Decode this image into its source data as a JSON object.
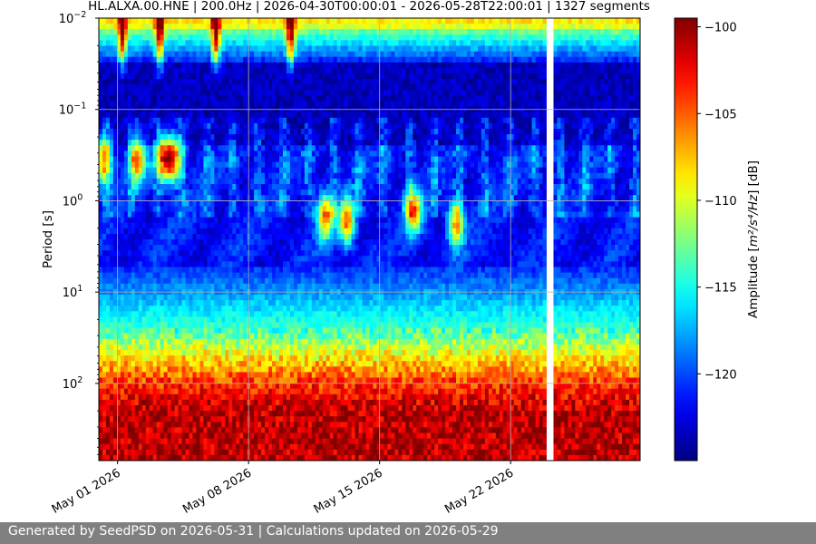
{
  "chart_data": {
    "type": "heatmap",
    "title": "HL.ALXA.00.HNE | 200.0Hz | 2026-04-30T00:00:01 - 2026-05-28T22:00:01 | 1327 segments",
    "ylabel": "Period [s]",
    "xlabel": "",
    "x_axis": {
      "range": [
        "2026-04-30T00:00:01",
        "2026-05-28T22:00:01"
      ],
      "ticks": [
        {
          "date": "2026-05-01",
          "label": "May 01 2026"
        },
        {
          "date": "2026-05-08",
          "label": "May 08 2026"
        },
        {
          "date": "2026-05-15",
          "label": "May 15 2026"
        },
        {
          "date": "2026-05-22",
          "label": "May 22 2026"
        }
      ]
    },
    "y_axis": {
      "scale": "log",
      "inverted": true,
      "range": [
        0.01,
        700
      ],
      "ticks": [
        {
          "value": 0.01,
          "base": "10",
          "exp": "−2"
        },
        {
          "value": 0.1,
          "base": "10",
          "exp": "−1"
        },
        {
          "value": 1,
          "base": "10",
          "exp": "0"
        },
        {
          "value": 10,
          "base": "10",
          "exp": "1"
        },
        {
          "value": 100,
          "base": "10",
          "exp": "2"
        }
      ]
    },
    "grid": true,
    "colorbar": {
      "label_prefix": "Amplitude [",
      "label_math": "m²/s⁴/Hz",
      "label_suffix": "] [dB]",
      "colormap": "jet",
      "range": [
        -125,
        -99.5
      ],
      "ticks": [
        -100,
        -105,
        -110,
        -115,
        -120
      ],
      "tick_labels": [
        "−100",
        "−105",
        "−110",
        "−115",
        "−120"
      ]
    },
    "gaps": [
      {
        "start": "2026-05-24T00:00:00",
        "end": "2026-05-24T08:00:00"
      }
    ],
    "bursts": [
      {
        "date": "2026-04-30T06:00",
        "period": 0.35
      },
      {
        "date": "2026-05-02T02:00",
        "period": 0.35
      },
      {
        "date": "2026-05-03T12:00",
        "period": 0.35
      },
      {
        "date": "2026-05-04T00:00",
        "period": 0.35
      },
      {
        "date": "2026-05-12T02:00",
        "period": 1.5
      },
      {
        "date": "2026-05-13T06:00",
        "period": 1.7
      },
      {
        "date": "2026-05-16T20:00",
        "period": 1.3
      },
      {
        "date": "2026-05-19T02:00",
        "period": 1.8
      }
    ],
    "high_freq_events": [
      "2026-05-01T06:00",
      "2026-05-03T06:00",
      "2026-05-06T06:00",
      "2026-05-10T06:00"
    ],
    "bands": [
      {
        "period_range": [
          0.01,
          0.02
        ],
        "level_db": -112
      },
      {
        "period_range": [
          0.03,
          0.25
        ],
        "level_db": -123
      },
      {
        "period_range": [
          0.3,
          5
        ],
        "level_db": -121
      },
      {
        "period_range": [
          30,
          100
        ],
        "level_db": -110
      },
      {
        "period_range": [
          200,
          700
        ],
        "level_db": -100
      }
    ]
  },
  "footer": {
    "text": "Generated by SeedPSD on 2026-05-31 | Calculations updated on 2026-05-29"
  }
}
